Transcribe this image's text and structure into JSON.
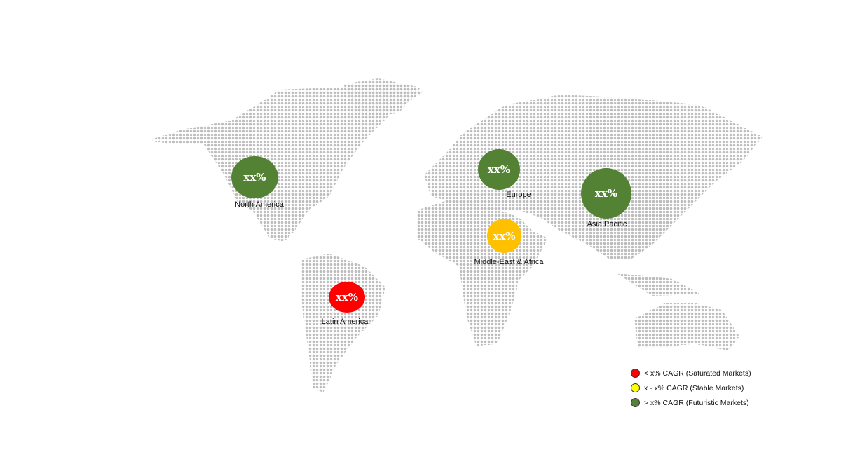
{
  "colors": {
    "futuristic": "#548235",
    "stable": "#FFC000",
    "saturated": "#FF0000",
    "legend_stable": "#FFFF00",
    "map_dots": "#bdbdbd"
  },
  "regions": [
    {
      "name": "North America",
      "value": "xx%",
      "category": "futuristic"
    },
    {
      "name": "Europe",
      "value": "xx%",
      "category": "futuristic"
    },
    {
      "name": "Asia Pacific",
      "value": "xx%",
      "category": "futuristic"
    },
    {
      "name": "Middle-East & Africa",
      "value": "xx%",
      "category": "stable"
    },
    {
      "name": "Latin America",
      "value": "xx%",
      "category": "saturated"
    }
  ],
  "legend": [
    {
      "label": "< x% CAGR (Saturated Markets)",
      "category": "saturated"
    },
    {
      "label": "x - x% CAGR (Stable Markets)",
      "category": "stable"
    },
    {
      "label": "> x% CAGR (Futuristic Markets)",
      "category": "futuristic"
    }
  ]
}
